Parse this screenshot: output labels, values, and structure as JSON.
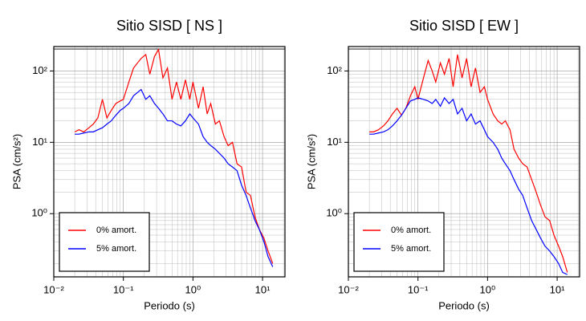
{
  "chart_data": [
    {
      "type": "line",
      "title": "Sitio SISD [ NS ]",
      "xlabel": "Periodo (s)",
      "ylabel": "PSA (cm/s²)",
      "xscale": "log",
      "yscale": "log",
      "grid": true,
      "legend": "lower left",
      "xlim": [
        0.01,
        21
      ],
      "ylim": [
        0.13,
        220
      ],
      "xticks": [
        {
          "value": 0.01,
          "label": "10⁻²"
        },
        {
          "value": 0.1,
          "label": "10⁻¹"
        },
        {
          "value": 1,
          "label": "10⁰"
        },
        {
          "value": 10,
          "label": "10¹"
        }
      ],
      "yticks": [
        {
          "value": 1,
          "label": "10⁰"
        },
        {
          "value": 10,
          "label": "10¹"
        },
        {
          "value": 100,
          "label": "10²"
        }
      ],
      "x": [
        0.02,
        0.023,
        0.027,
        0.032,
        0.037,
        0.043,
        0.05,
        0.058,
        0.067,
        0.078,
        0.09,
        0.1,
        0.12,
        0.14,
        0.16,
        0.18,
        0.21,
        0.24,
        0.28,
        0.32,
        0.37,
        0.43,
        0.5,
        0.58,
        0.67,
        0.78,
        0.9,
        1.0,
        1.2,
        1.4,
        1.6,
        1.8,
        2.1,
        2.4,
        2.8,
        3.2,
        3.7,
        4.3,
        5,
        5.8,
        6.7,
        7.8,
        9,
        10.5,
        12,
        14
      ],
      "series": [
        {
          "name": "0% amort.",
          "color": "#ff0000",
          "values": [
            14,
            15,
            14,
            16,
            18,
            22,
            40,
            22,
            28,
            35,
            38,
            40,
            70,
            110,
            130,
            150,
            170,
            90,
            160,
            200,
            80,
            110,
            40,
            70,
            40,
            75,
            40,
            70,
            30,
            60,
            25,
            35,
            18,
            20,
            12,
            9,
            10,
            5,
            4.5,
            2,
            1.8,
            0.9,
            0.6,
            0.45,
            0.3,
            0.2
          ]
        },
        {
          "name": "5% amort.",
          "color": "#0000ff",
          "values": [
            13,
            13,
            13.5,
            14,
            14,
            15,
            16,
            18,
            20,
            24,
            28,
            30,
            35,
            45,
            50,
            55,
            40,
            45,
            35,
            30,
            25,
            20,
            20,
            18,
            17,
            20,
            25,
            22,
            18,
            12,
            10,
            9,
            8,
            7,
            6,
            5,
            4.5,
            4,
            2.5,
            1.8,
            1.2,
            0.8,
            0.6,
            0.4,
            0.25,
            0.18
          ]
        }
      ]
    },
    {
      "type": "line",
      "title": "Sitio SISD [ EW ]",
      "xlabel": "Periodo (s)",
      "ylabel": "PSA (cm/s²)",
      "xscale": "log",
      "yscale": "log",
      "grid": true,
      "legend": "lower left",
      "xlim": [
        0.01,
        21
      ],
      "ylim": [
        0.13,
        220
      ],
      "xticks": [
        {
          "value": 0.01,
          "label": "10⁻²"
        },
        {
          "value": 0.1,
          "label": "10⁻¹"
        },
        {
          "value": 1,
          "label": "10⁰"
        },
        {
          "value": 10,
          "label": "10¹"
        }
      ],
      "yticks": [
        {
          "value": 1,
          "label": "10⁰"
        },
        {
          "value": 10,
          "label": "10¹"
        },
        {
          "value": 100,
          "label": "10²"
        }
      ],
      "x": [
        0.02,
        0.023,
        0.027,
        0.032,
        0.037,
        0.043,
        0.05,
        0.058,
        0.067,
        0.078,
        0.09,
        0.1,
        0.12,
        0.14,
        0.16,
        0.18,
        0.21,
        0.24,
        0.28,
        0.32,
        0.37,
        0.43,
        0.5,
        0.58,
        0.67,
        0.78,
        0.9,
        1.0,
        1.2,
        1.4,
        1.6,
        1.8,
        2.1,
        2.4,
        2.8,
        3.2,
        3.7,
        4.3,
        5,
        5.8,
        6.7,
        7.8,
        9,
        10.5,
        12,
        14
      ],
      "series": [
        {
          "name": "0% amort.",
          "color": "#ff0000",
          "values": [
            14,
            14,
            15,
            17,
            20,
            25,
            30,
            24,
            30,
            45,
            60,
            40,
            80,
            140,
            100,
            70,
            130,
            90,
            150,
            60,
            170,
            80,
            150,
            60,
            110,
            50,
            60,
            40,
            25,
            20,
            18,
            20,
            15,
            8,
            6,
            5,
            4.5,
            3,
            2,
            1.3,
            0.9,
            0.8,
            0.5,
            0.35,
            0.25,
            0.15
          ]
        },
        {
          "name": "5% amort.",
          "color": "#0000ff",
          "values": [
            13,
            13,
            13.5,
            14,
            15,
            17,
            20,
            24,
            30,
            38,
            40,
            42,
            40,
            38,
            35,
            40,
            32,
            42,
            35,
            40,
            25,
            30,
            20,
            25,
            18,
            20,
            15,
            12,
            10,
            8,
            6,
            5,
            4,
            3,
            2.2,
            1.8,
            1.2,
            0.8,
            0.6,
            0.45,
            0.35,
            0.3,
            0.25,
            0.2,
            0.15,
            0.14
          ]
        }
      ]
    }
  ]
}
